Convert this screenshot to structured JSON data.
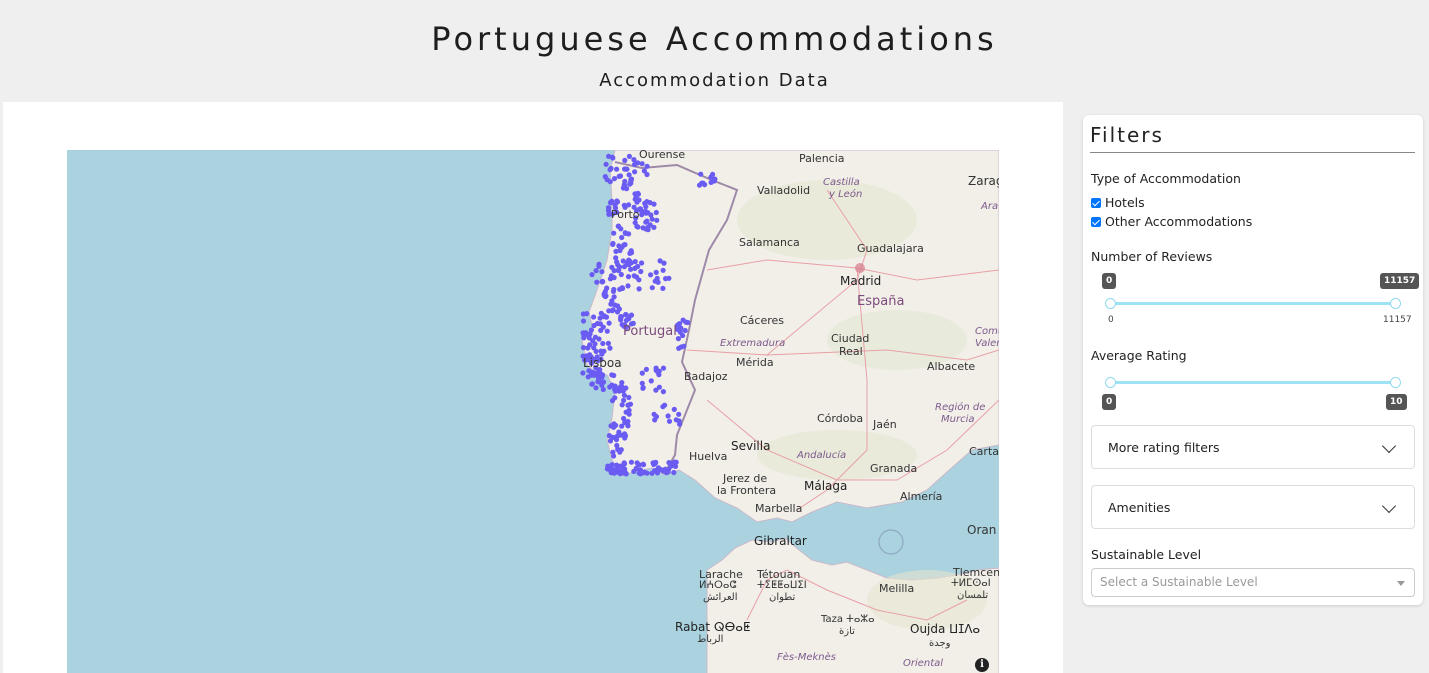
{
  "header": {
    "title": "Portuguese Accommodations",
    "subtitle": "Accommodation Data"
  },
  "map": {
    "info_icon": "info-icon",
    "labels": {
      "ourense": "Ourense",
      "palencia": "Palencia",
      "valladolid": "Valladolid",
      "castilla1": "Castilla",
      "castilla2": "y León",
      "zaragoza": "Zarag",
      "aragon": "Ara",
      "porto": "Porto",
      "salamanca": "Salamanca",
      "guadalajara": "Guadalajara",
      "madrid": "Madrid",
      "espana": "España",
      "portugal": "Portugal",
      "caceres": "Cáceres",
      "extremadura": "Extremadura",
      "ciudad1": "Ciudad",
      "ciudad2": "Real",
      "comu1": "Comu",
      "comu2": "Valen",
      "lisboa": "Lisboa",
      "merida": "Mérida",
      "badajoz": "Badajoz",
      "albacete": "Albacete",
      "cordoba": "Córdoba",
      "jaen": "Jaén",
      "murcia1": "Región de",
      "murcia2": "Murcia",
      "sevilla": "Sevilla",
      "huelva": "Huelva",
      "andalucia": "Andalucía",
      "granada": "Granada",
      "cartagena": "Cartag",
      "jerez1": "Jerez de",
      "jerez2": "la Frontera",
      "malaga": "Málaga",
      "almeria": "Almería",
      "marbella": "Marbella",
      "oran": "Oran",
      "gibraltar": "Gibraltar",
      "larache1": "Larache",
      "larache2": "ⵍⵄⵔⴰⵛ",
      "larache3": "العرائش",
      "tetouan1": "Tétouan",
      "tetouan2": "ⵜⵉⵟⵟⴰⵡⵉⵏ",
      "tetouan3": "تطوان",
      "tlemcen1": "Tlemcen",
      "tlemcen2": "ⵜⵍⵎⵙⴰⵏ",
      "tlemcen3": "تلمسان",
      "melilla": "Melilla",
      "rabat1": "Rabat ⵕⴱⴰⵟ",
      "rabat2": "الرباط",
      "taza1": "Taza ⵜⴰⵣⴰ",
      "taza2": "تازة",
      "oujda1": "Oujda ⵡⵊⴷⴰ",
      "oujda2": "وجدة",
      "fes": "Fès-Meknès",
      "oriental": "Oriental"
    },
    "colors": {
      "sea": "#aad3df",
      "land": "#f2efe9",
      "points": "#6a5cf2"
    }
  },
  "filters": {
    "title": "Filters",
    "type_label": "Type of Accommodation",
    "type_options": [
      {
        "label": "Hotels",
        "checked": true
      },
      {
        "label": "Other Accommodations",
        "checked": true
      }
    ],
    "reviews_label": "Number of Reviews",
    "reviews": {
      "min": "0",
      "max": "11157",
      "value_low": "0",
      "value_high": "11157"
    },
    "rating_label": "Average Rating",
    "rating": {
      "value_low": "0",
      "value_high": "10"
    },
    "more_rating": "More rating filters",
    "amenities": "Amenities",
    "sustainable_label": "Sustainable Level",
    "sustainable_placeholder": "Select a Sustainable Level"
  }
}
